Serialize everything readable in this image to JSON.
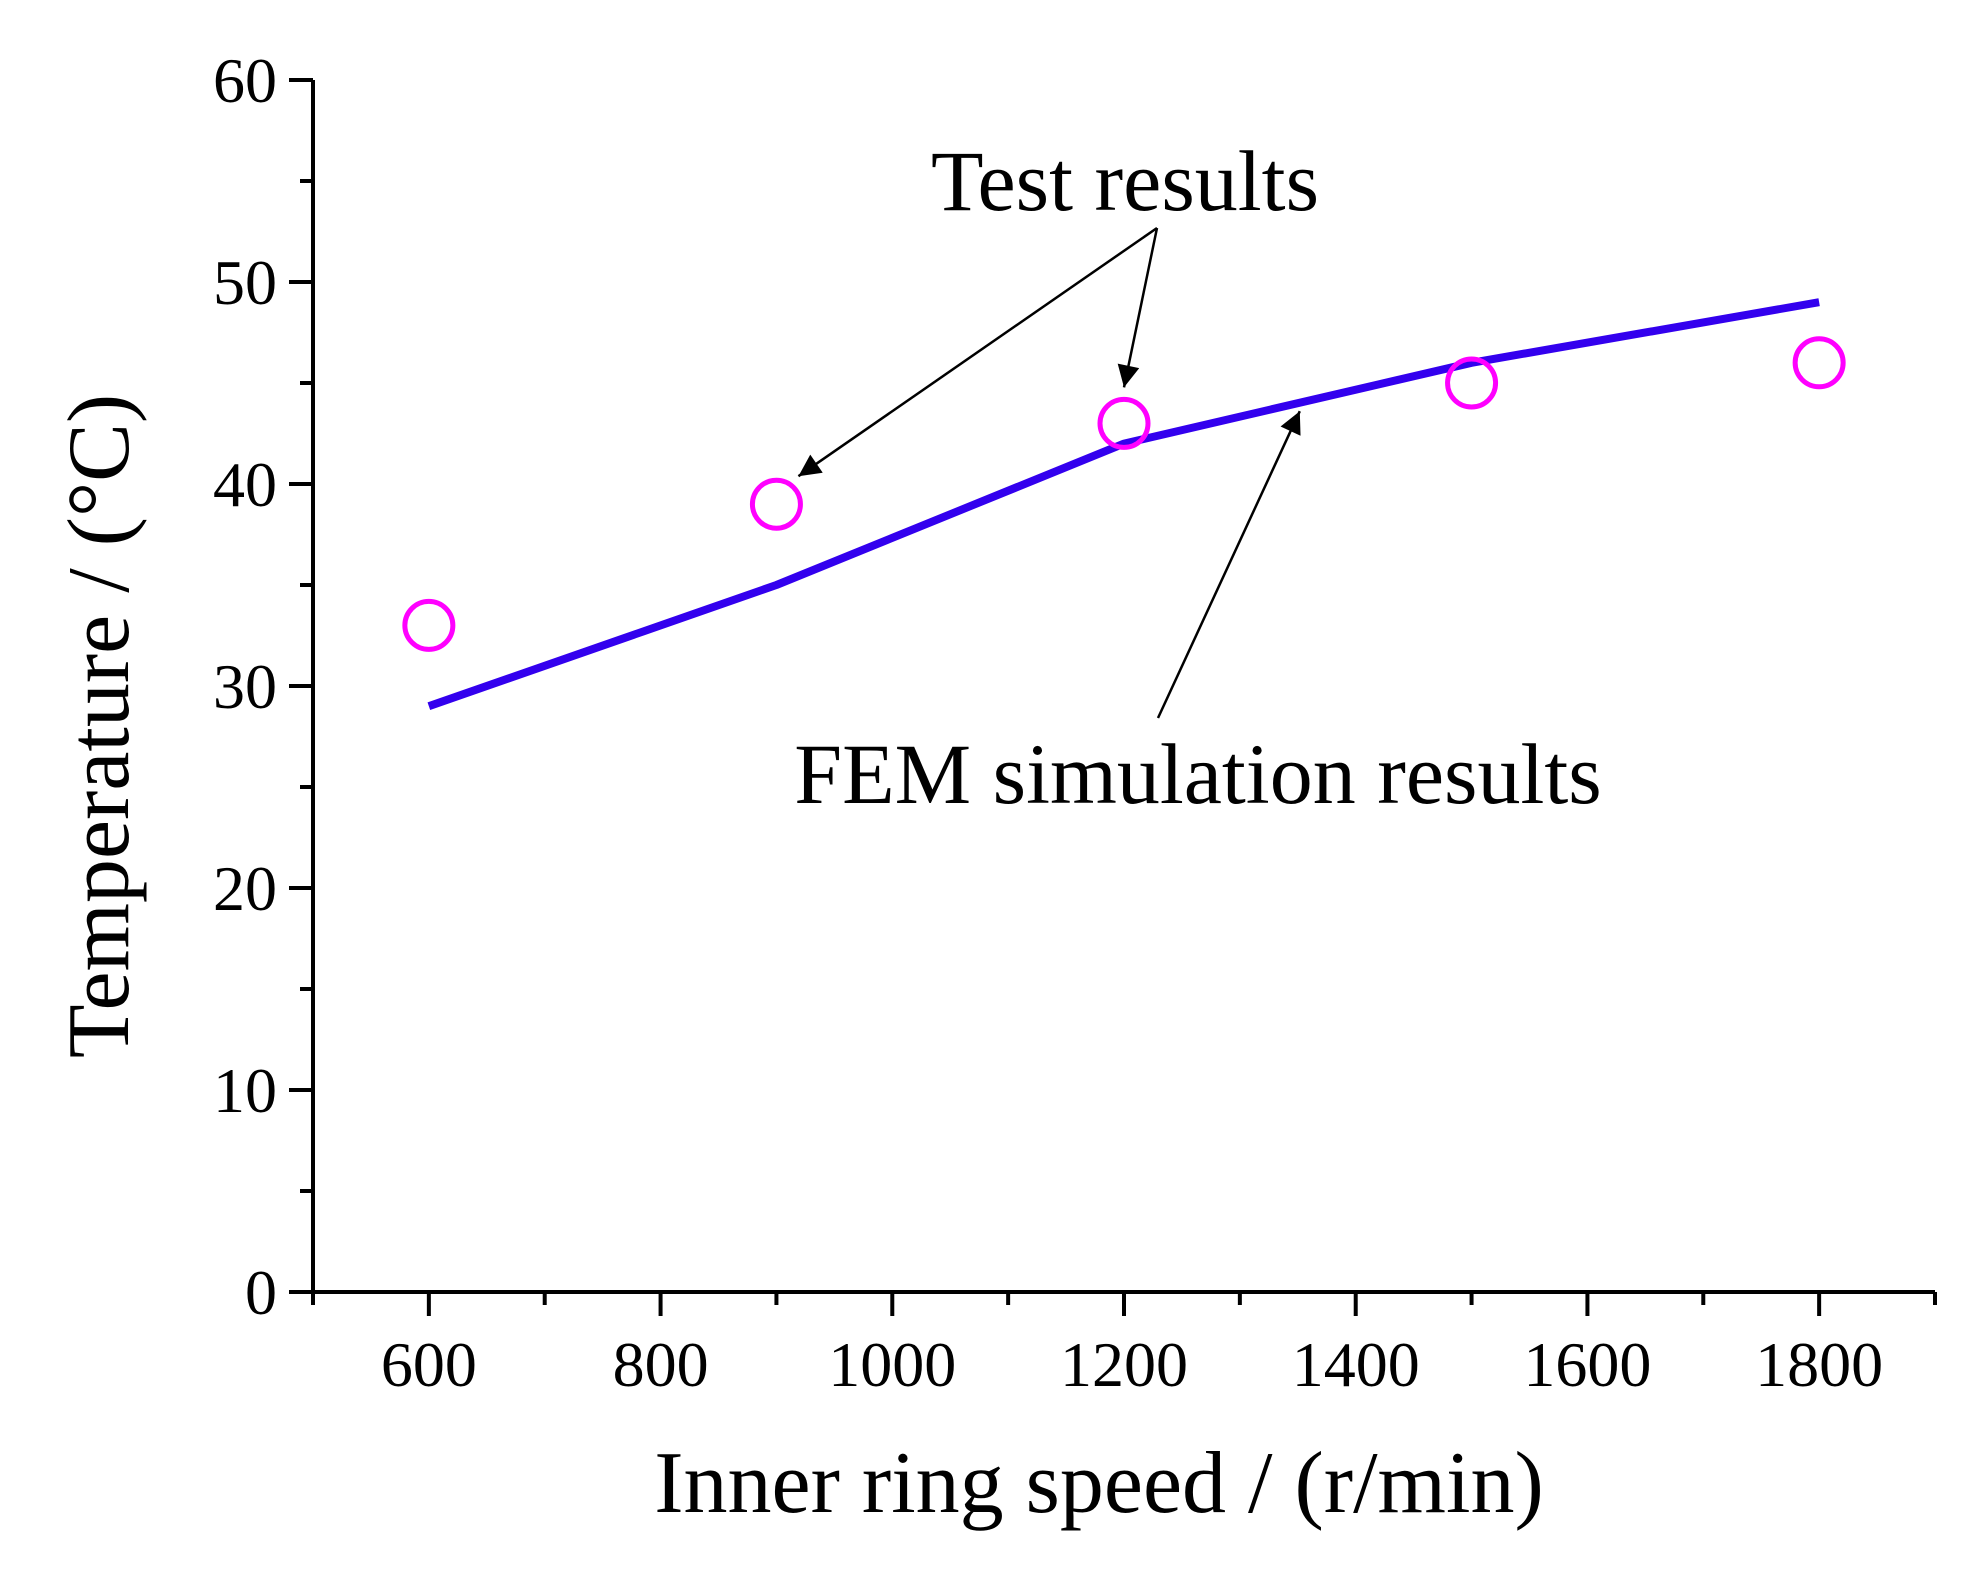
{
  "chart_data": {
    "type": "line",
    "xlabel": "Inner ring speed / (r/min)",
    "ylabel": "Temperature / (°C)",
    "xlim": [
      500,
      1900
    ],
    "ylim": [
      0,
      60
    ],
    "x_ticks": [
      600,
      800,
      1000,
      1200,
      1400,
      1600,
      1800
    ],
    "y_ticks": [
      0,
      10,
      20,
      30,
      40,
      50,
      60
    ],
    "x_tick_labels": [
      "600",
      "800",
      "1000",
      "1200",
      "1400",
      "1600",
      "1800"
    ],
    "y_tick_labels": [
      "0",
      "10",
      "20",
      "30",
      "40",
      "50",
      "60"
    ],
    "grid": false,
    "series": [
      {
        "name": "FEM simulation results",
        "kind": "line",
        "color": "#3300ee",
        "x": [
          600,
          900,
          1200,
          1500,
          1800
        ],
        "y": [
          29,
          35,
          42,
          46,
          49
        ]
      },
      {
        "name": "Test results",
        "kind": "scatter",
        "marker": "open-circle",
        "color": "#ff00ff",
        "x": [
          600,
          900,
          1200,
          1500,
          1800
        ],
        "y": [
          33,
          39,
          43,
          45,
          46
        ]
      }
    ],
    "annotations": [
      {
        "text": "Test results",
        "points_to_series": "Test results",
        "targets_x": [
          900,
          1200
        ]
      },
      {
        "text": "FEM simulation results",
        "points_to_series": "FEM simulation results",
        "targets_x": [
          1350
        ]
      }
    ]
  }
}
